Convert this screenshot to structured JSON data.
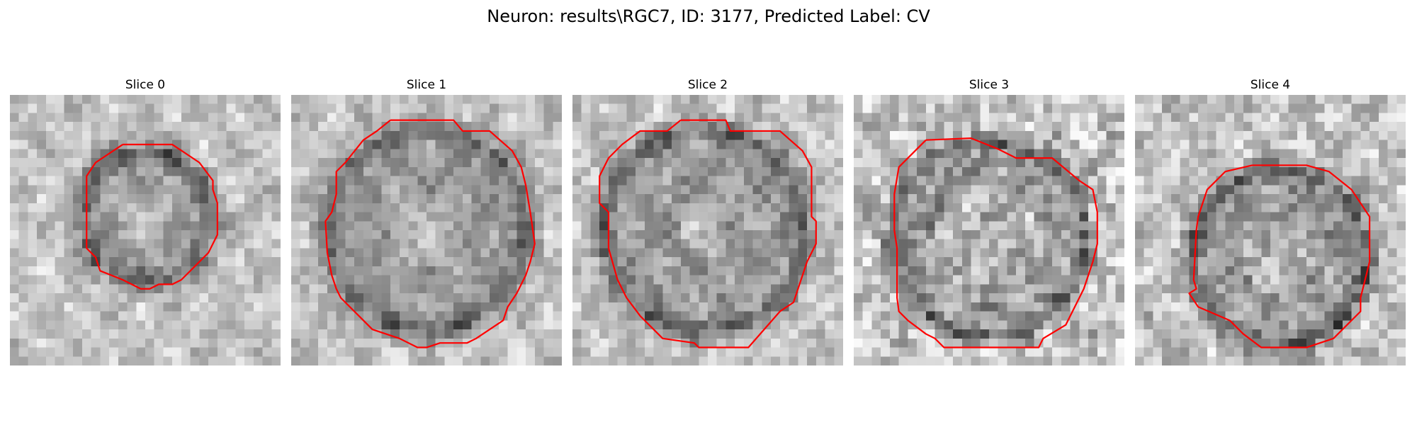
{
  "figure": {
    "title": "Neuron: results\\RGC7, ID: 3177, Predicted Label: CV"
  },
  "colors": {
    "contour": "#ff0000",
    "background": "#ffffff"
  },
  "grid_size": 30,
  "panels": [
    {
      "title": "Slice 0",
      "seed": 11,
      "texture": {
        "center": [
          15,
          13.5
        ],
        "radius": 7.5,
        "blob_radius": 3.5,
        "ring_width": 2.2,
        "noise": 30
      },
      "contour": [
        [
          12.5,
          5.5
        ],
        [
          18,
          5.5
        ],
        [
          21,
          7.5
        ],
        [
          22.5,
          9.5
        ],
        [
          22.5,
          10.5
        ],
        [
          23,
          12
        ],
        [
          23,
          15.5
        ],
        [
          22,
          17.5
        ],
        [
          19,
          20.5
        ],
        [
          18,
          21
        ],
        [
          16.5,
          21
        ],
        [
          15.5,
          21.5
        ],
        [
          14.5,
          21.5
        ],
        [
          12.5,
          20.5
        ],
        [
          10,
          19.5
        ],
        [
          9.5,
          18
        ],
        [
          8.5,
          17
        ],
        [
          8.5,
          9
        ],
        [
          9.5,
          7.5
        ],
        [
          11,
          6.5
        ],
        [
          12.5,
          5.5
        ]
      ]
    },
    {
      "title": "Slice 1",
      "seed": 23,
      "texture": {
        "center": [
          15,
          15
        ],
        "radius": 11.5,
        "blob_radius": 4,
        "ring_width": 2,
        "noise": 28
      },
      "contour": [
        [
          11,
          2.8
        ],
        [
          18,
          2.8
        ],
        [
          19,
          4
        ],
        [
          22,
          4
        ],
        [
          24.5,
          6.2
        ],
        [
          25.5,
          8
        ],
        [
          26,
          10
        ],
        [
          26.5,
          13
        ],
        [
          27,
          16.5
        ],
        [
          26.5,
          18.5
        ],
        [
          26,
          20
        ],
        [
          25,
          22
        ],
        [
          24,
          23.5
        ],
        [
          23.5,
          25
        ],
        [
          22,
          26
        ],
        [
          20.5,
          27
        ],
        [
          19.5,
          27.5
        ],
        [
          16.5,
          27.5
        ],
        [
          15,
          28
        ],
        [
          14,
          28
        ],
        [
          12,
          27
        ],
        [
          10.5,
          26.5
        ],
        [
          9,
          26
        ],
        [
          8,
          25
        ],
        [
          6.5,
          23.5
        ],
        [
          5.5,
          22.5
        ],
        [
          5,
          21.5
        ],
        [
          4.5,
          20
        ],
        [
          4,
          17.5
        ],
        [
          3.8,
          14
        ],
        [
          4.5,
          13
        ],
        [
          5,
          11
        ],
        [
          5,
          8.5
        ],
        [
          6,
          7.5
        ],
        [
          8,
          5
        ],
        [
          9.5,
          4
        ],
        [
          11,
          2.8
        ]
      ]
    },
    {
      "title": "Slice 2",
      "seed": 37,
      "texture": {
        "center": [
          14.5,
          15
        ],
        "radius": 11.5,
        "blob_radius": 3,
        "ring_width": 2,
        "noise": 32
      },
      "contour": [
        [
          12,
          2.8
        ],
        [
          17,
          2.8
        ],
        [
          17.5,
          4
        ],
        [
          23,
          4
        ],
        [
          25.5,
          6.2
        ],
        [
          26.5,
          8
        ],
        [
          26.5,
          13.5
        ],
        [
          27,
          14
        ],
        [
          27,
          16.5
        ],
        [
          26,
          18.5
        ],
        [
          25.5,
          20
        ],
        [
          24.5,
          23
        ],
        [
          23,
          24
        ],
        [
          19.5,
          28
        ],
        [
          14,
          28
        ],
        [
          13.5,
          27.5
        ],
        [
          10,
          27
        ],
        [
          7.5,
          24.5
        ],
        [
          6,
          22.5
        ],
        [
          5,
          20.5
        ],
        [
          4,
          17
        ],
        [
          4,
          13
        ],
        [
          3,
          12
        ],
        [
          3,
          9
        ],
        [
          4,
          7
        ],
        [
          5.5,
          5.5
        ],
        [
          7.5,
          4
        ],
        [
          10.5,
          4
        ],
        [
          12,
          2.8
        ]
      ]
    },
    {
      "title": "Slice 3",
      "seed": 51,
      "texture": {
        "center": [
          15,
          16
        ],
        "radius": 11,
        "blob_radius": 6,
        "ring_width": 1.5,
        "noise": 48
      },
      "contour": [
        [
          8,
          5
        ],
        [
          13,
          4.8
        ],
        [
          16,
          6
        ],
        [
          18,
          7
        ],
        [
          22,
          7
        ],
        [
          25,
          9.5
        ],
        [
          26.5,
          10.5
        ],
        [
          27,
          13
        ],
        [
          27,
          16.5
        ],
        [
          26.5,
          18.5
        ],
        [
          25.5,
          21.5
        ],
        [
          24.5,
          23.5
        ],
        [
          23.5,
          25.5
        ],
        [
          21,
          27
        ],
        [
          20.5,
          28
        ],
        [
          19,
          28
        ],
        [
          18,
          28
        ],
        [
          10,
          28
        ],
        [
          9,
          27
        ],
        [
          8,
          26.5
        ],
        [
          6,
          25
        ],
        [
          5,
          24
        ],
        [
          4.8,
          22.5
        ],
        [
          4.8,
          17
        ],
        [
          4.5,
          15
        ],
        [
          4.5,
          11
        ],
        [
          5,
          8
        ],
        [
          8,
          5
        ]
      ]
    },
    {
      "title": "Slice 4",
      "seed": 67,
      "texture": {
        "center": [
          16,
          18
        ],
        "radius": 10,
        "blob_radius": 4,
        "ring_width": 1.8,
        "noise": 38
      },
      "contour": [
        [
          13,
          7.8
        ],
        [
          19,
          7.8
        ],
        [
          21.5,
          8.5
        ],
        [
          24,
          10.5
        ],
        [
          26,
          13.5
        ],
        [
          26,
          18.5
        ],
        [
          25,
          22.5
        ],
        [
          25,
          24
        ],
        [
          22,
          27
        ],
        [
          19,
          28
        ],
        [
          14,
          28
        ],
        [
          12,
          26.5
        ],
        [
          10.5,
          25
        ],
        [
          7,
          23.5
        ],
        [
          6,
          22
        ],
        [
          6.8,
          21.5
        ],
        [
          6.5,
          20.5
        ],
        [
          6.8,
          15
        ],
        [
          7,
          13.5
        ],
        [
          8,
          10.5
        ],
        [
          10,
          8.5
        ],
        [
          13,
          7.8
        ]
      ]
    }
  ]
}
